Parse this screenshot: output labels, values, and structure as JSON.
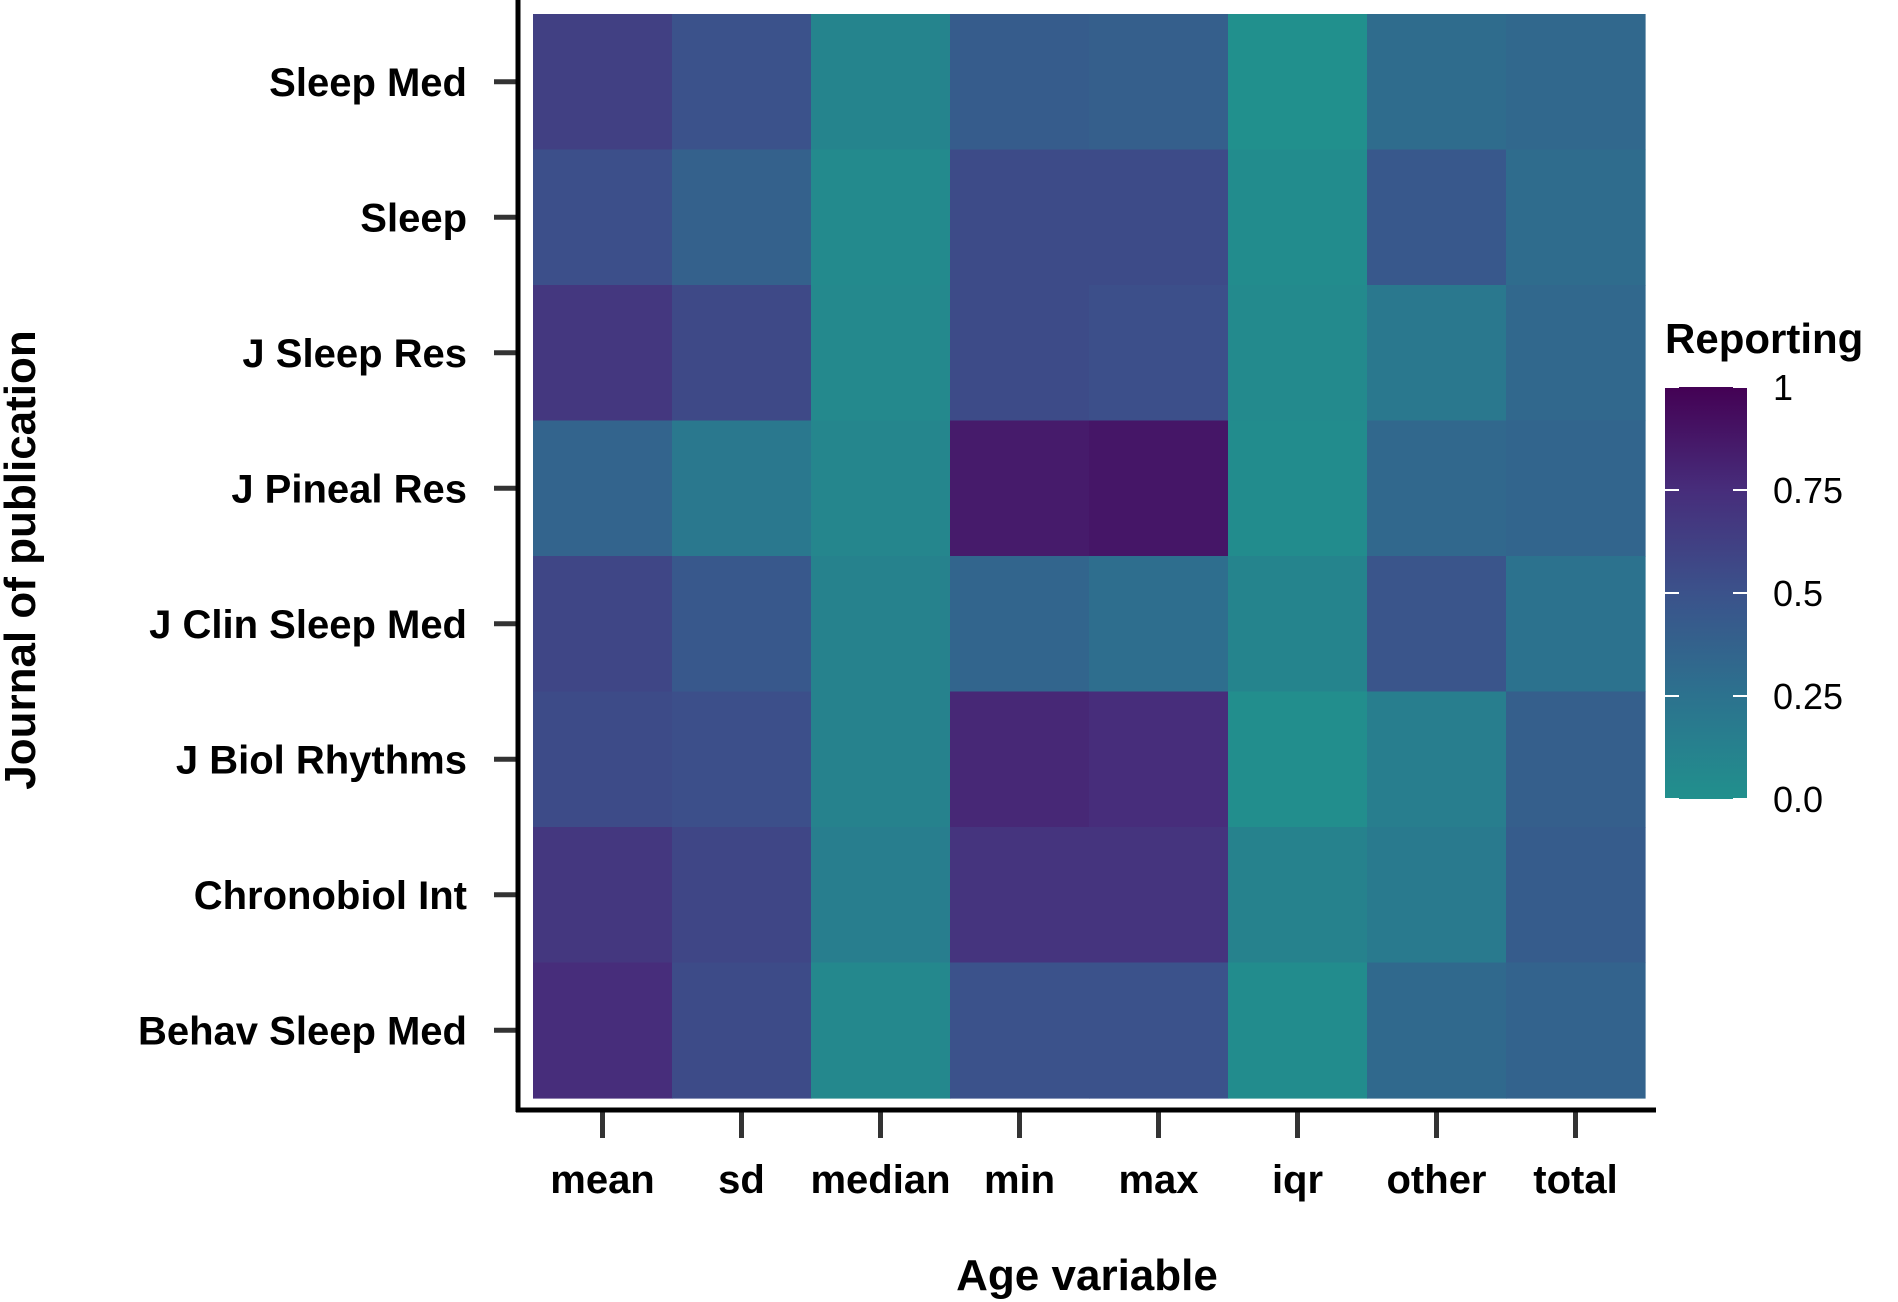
{
  "chart_data": {
    "type": "heatmap",
    "xlabel": "Age variable",
    "ylabel": "Journal of publication",
    "x_categories": [
      "mean",
      "sd",
      "median",
      "min",
      "max",
      "iqr",
      "other",
      "total"
    ],
    "y_categories": [
      "Sleep Med",
      "Sleep",
      "J Sleep Res",
      "J Pineal Res",
      "J Clin Sleep Med",
      "J Biol Rhythms",
      "Chronobiol Int",
      "Behav Sleep Med"
    ],
    "values": [
      [
        0.62,
        0.5,
        0.1,
        0.42,
        0.4,
        0.0,
        0.3,
        0.33
      ],
      [
        0.52,
        0.38,
        0.05,
        0.55,
        0.55,
        0.03,
        0.45,
        0.3
      ],
      [
        0.68,
        0.56,
        0.06,
        0.55,
        0.52,
        0.05,
        0.2,
        0.33
      ],
      [
        0.36,
        0.2,
        0.08,
        0.85,
        0.88,
        0.03,
        0.33,
        0.35
      ],
      [
        0.58,
        0.45,
        0.12,
        0.35,
        0.28,
        0.1,
        0.48,
        0.25
      ],
      [
        0.55,
        0.52,
        0.12,
        0.78,
        0.75,
        0.02,
        0.15,
        0.4
      ],
      [
        0.68,
        0.58,
        0.15,
        0.7,
        0.7,
        0.12,
        0.18,
        0.42
      ],
      [
        0.75,
        0.55,
        0.07,
        0.5,
        0.5,
        0.03,
        0.32,
        0.37
      ]
    ],
    "color_scale": {
      "title": "Reporting",
      "min": 0.0,
      "max": 1.0,
      "ticks": [
        1.0,
        0.75,
        0.5,
        0.25,
        0.0
      ],
      "tick_labels": [
        "1",
        "0.75",
        "0.5",
        "0.25",
        "0.0"
      ],
      "colors": [
        "#21908d",
        "#2c728e",
        "#3b528b",
        "#472d7b",
        "#440154"
      ]
    }
  }
}
